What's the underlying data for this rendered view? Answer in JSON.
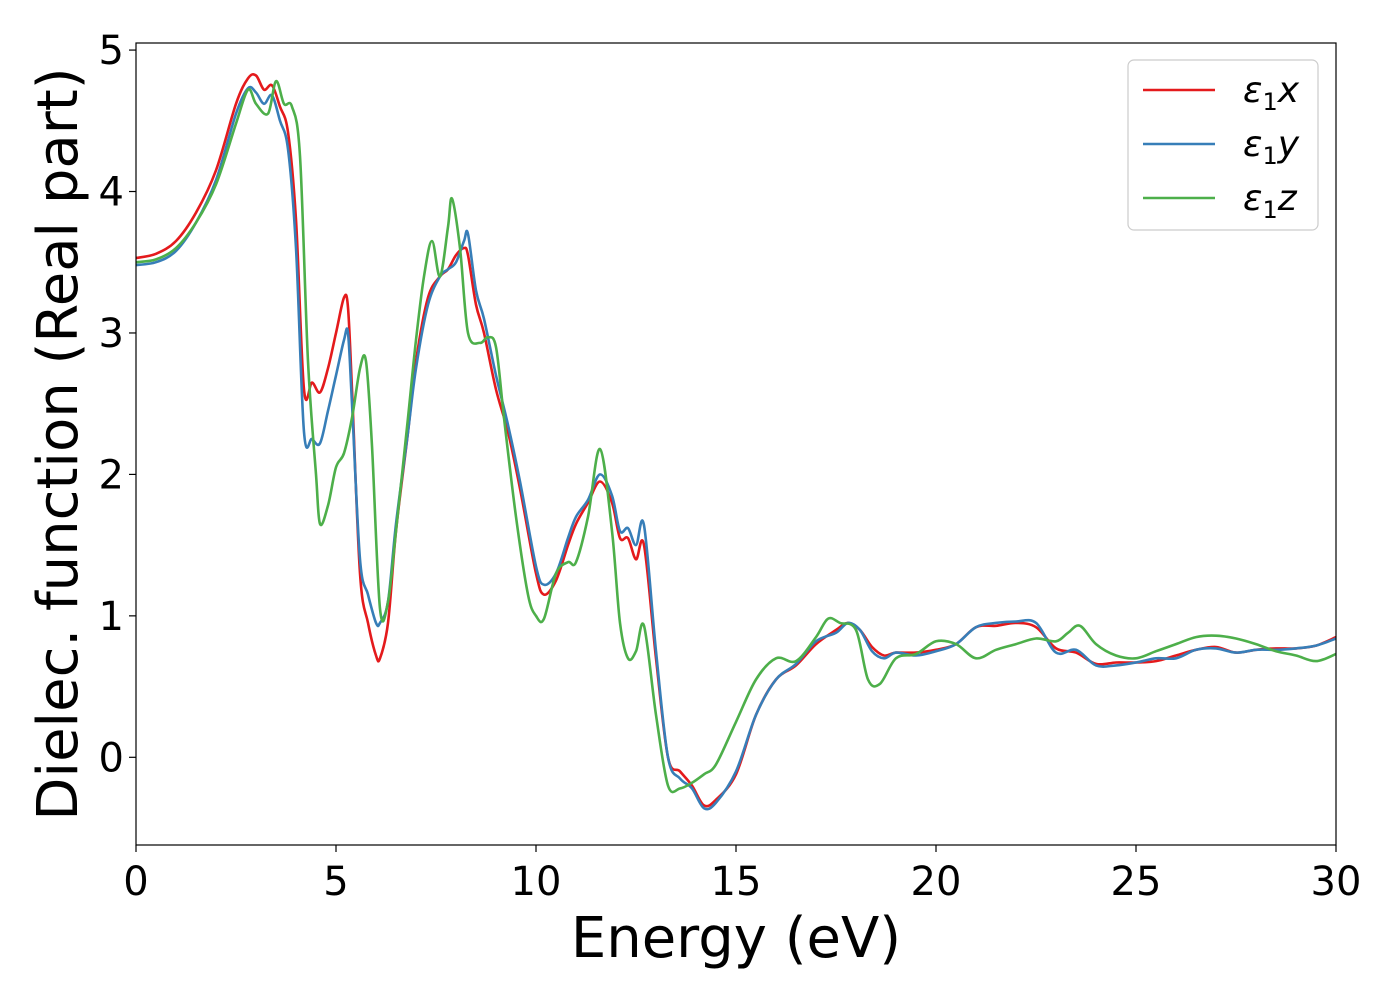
{
  "chart_data": {
    "type": "line",
    "xlabel": "Energy (eV)",
    "ylabel": "Dielec. function (Real part)",
    "xlim": [
      0,
      30
    ],
    "ylim": [
      -0.62,
      5.05
    ],
    "xticks": [
      0,
      5,
      10,
      15,
      20,
      25,
      30
    ],
    "yticks": [
      0,
      1,
      2,
      3,
      4,
      5
    ],
    "grid": false,
    "legend_position": "top-right",
    "series": [
      {
        "name": "ε1x",
        "legend": {
          "base": "ε",
          "sub": "1",
          "var": "x"
        },
        "color": "#e41a1c",
        "x": [
          0,
          0.5,
          1,
          1.5,
          2,
          2.5,
          2.8,
          3.0,
          3.2,
          3.4,
          3.6,
          3.8,
          4.0,
          4.2,
          4.4,
          4.6,
          4.8,
          5.0,
          5.2,
          5.3,
          5.4,
          5.6,
          5.8,
          6.0,
          6.1,
          6.3,
          6.5,
          6.8,
          7.0,
          7.3,
          7.6,
          7.8,
          8.0,
          8.2,
          8.3,
          8.5,
          8.7,
          9.0,
          9.3,
          9.6,
          10.0,
          10.2,
          10.5,
          10.8,
          11.0,
          11.3,
          11.6,
          11.9,
          12.1,
          12.3,
          12.5,
          12.7,
          13.0,
          13.3,
          13.6,
          13.9,
          14.2,
          14.5,
          15.0,
          15.5,
          16.0,
          16.5,
          17.0,
          17.5,
          17.8,
          18.1,
          18.4,
          18.7,
          19.0,
          19.5,
          20.0,
          20.5,
          21.0,
          21.5,
          22.0,
          22.5,
          23.0,
          23.5,
          24.0,
          24.5,
          25.0,
          25.5,
          26.0,
          26.5,
          27.0,
          27.5,
          28.0,
          28.5,
          29.0,
          29.5,
          30.0
        ],
        "y": [
          3.53,
          3.56,
          3.65,
          3.85,
          4.15,
          4.62,
          4.8,
          4.82,
          4.72,
          4.75,
          4.6,
          4.42,
          3.8,
          2.6,
          2.65,
          2.58,
          2.75,
          3.0,
          3.25,
          3.18,
          2.6,
          1.3,
          0.95,
          0.72,
          0.7,
          0.95,
          1.6,
          2.3,
          2.8,
          3.25,
          3.4,
          3.45,
          3.55,
          3.6,
          3.55,
          3.2,
          3.0,
          2.6,
          2.3,
          1.9,
          1.3,
          1.15,
          1.25,
          1.5,
          1.65,
          1.8,
          1.95,
          1.8,
          1.55,
          1.55,
          1.4,
          1.5,
          0.7,
          0.0,
          -0.1,
          -0.2,
          -0.34,
          -0.3,
          -0.12,
          0.3,
          0.55,
          0.65,
          0.8,
          0.9,
          0.95,
          0.9,
          0.78,
          0.72,
          0.74,
          0.74,
          0.76,
          0.8,
          0.92,
          0.93,
          0.95,
          0.92,
          0.77,
          0.74,
          0.66,
          0.67,
          0.67,
          0.68,
          0.72,
          0.76,
          0.78,
          0.74,
          0.76,
          0.77,
          0.77,
          0.79,
          0.85
        ]
      },
      {
        "name": "ε1y",
        "legend": {
          "base": "ε",
          "sub": "1",
          "var": "y"
        },
        "color": "#377eb8",
        "x": [
          0,
          0.5,
          1,
          1.5,
          2,
          2.5,
          2.8,
          3.0,
          3.2,
          3.4,
          3.6,
          3.8,
          4.0,
          4.2,
          4.4,
          4.6,
          4.8,
          5.0,
          5.2,
          5.3,
          5.4,
          5.6,
          5.8,
          6.0,
          6.1,
          6.3,
          6.5,
          6.8,
          7.0,
          7.3,
          7.6,
          7.8,
          8.0,
          8.2,
          8.3,
          8.5,
          8.7,
          9.0,
          9.3,
          9.6,
          10.0,
          10.2,
          10.5,
          10.8,
          11.0,
          11.3,
          11.6,
          11.9,
          12.1,
          12.3,
          12.5,
          12.7,
          13.0,
          13.3,
          13.6,
          13.9,
          14.2,
          14.5,
          15.0,
          15.5,
          16.0,
          16.5,
          17.0,
          17.5,
          17.8,
          18.1,
          18.4,
          18.7,
          19.0,
          19.5,
          20.0,
          20.5,
          21.0,
          21.5,
          22.0,
          22.5,
          23.0,
          23.5,
          24.0,
          24.5,
          25.0,
          25.5,
          26.0,
          26.5,
          27.0,
          27.5,
          28.0,
          28.5,
          29.0,
          29.5,
          30.0
        ],
        "y": [
          3.48,
          3.5,
          3.58,
          3.78,
          4.08,
          4.55,
          4.73,
          4.7,
          4.62,
          4.68,
          4.5,
          4.3,
          3.6,
          2.3,
          2.25,
          2.22,
          2.45,
          2.7,
          2.95,
          3.0,
          2.5,
          1.4,
          1.15,
          0.95,
          0.95,
          1.1,
          1.65,
          2.3,
          2.75,
          3.2,
          3.4,
          3.45,
          3.5,
          3.65,
          3.7,
          3.3,
          3.1,
          2.7,
          2.35,
          1.95,
          1.35,
          1.22,
          1.3,
          1.55,
          1.7,
          1.82,
          2.0,
          1.85,
          1.6,
          1.62,
          1.5,
          1.64,
          0.75,
          0.0,
          -0.15,
          -0.22,
          -0.36,
          -0.32,
          -0.1,
          0.3,
          0.55,
          0.66,
          0.82,
          0.88,
          0.95,
          0.9,
          0.75,
          0.7,
          0.74,
          0.72,
          0.75,
          0.8,
          0.92,
          0.95,
          0.96,
          0.95,
          0.74,
          0.76,
          0.65,
          0.65,
          0.67,
          0.7,
          0.7,
          0.76,
          0.77,
          0.74,
          0.76,
          0.76,
          0.77,
          0.79,
          0.84
        ]
      },
      {
        "name": "ε1z",
        "legend": {
          "base": "ε",
          "sub": "1",
          "var": "z"
        },
        "color": "#4daf4a",
        "x": [
          0,
          0.5,
          1,
          1.5,
          2,
          2.5,
          2.8,
          3.0,
          3.3,
          3.5,
          3.7,
          3.9,
          4.1,
          4.3,
          4.5,
          4.6,
          4.8,
          5.0,
          5.2,
          5.4,
          5.6,
          5.75,
          5.9,
          6.1,
          6.3,
          6.5,
          6.8,
          7.0,
          7.2,
          7.4,
          7.6,
          7.8,
          7.9,
          8.1,
          8.3,
          8.6,
          8.8,
          9.0,
          9.2,
          9.5,
          9.8,
          10.0,
          10.2,
          10.5,
          10.8,
          11.0,
          11.3,
          11.6,
          11.9,
          12.1,
          12.3,
          12.5,
          12.7,
          13.0,
          13.3,
          13.6,
          13.9,
          14.2,
          14.5,
          15.0,
          15.5,
          16.0,
          16.5,
          17.0,
          17.3,
          17.6,
          18.0,
          18.3,
          18.6,
          19.0,
          19.5,
          20.0,
          20.5,
          21.0,
          21.5,
          22.0,
          22.5,
          23.0,
          23.3,
          23.6,
          24.0,
          24.5,
          25.0,
          25.5,
          26.0,
          26.5,
          27.0,
          27.5,
          28.0,
          28.5,
          29.0,
          29.5,
          30.0
        ],
        "y": [
          3.5,
          3.52,
          3.6,
          3.78,
          4.05,
          4.48,
          4.72,
          4.62,
          4.55,
          4.78,
          4.62,
          4.6,
          4.25,
          2.8,
          2.0,
          1.65,
          1.78,
          2.05,
          2.15,
          2.4,
          2.75,
          2.8,
          2.2,
          1.05,
          1.1,
          1.6,
          2.4,
          2.95,
          3.4,
          3.65,
          3.4,
          3.75,
          3.95,
          3.6,
          3.0,
          2.93,
          2.97,
          2.9,
          2.4,
          1.7,
          1.15,
          1.0,
          0.98,
          1.3,
          1.38,
          1.38,
          1.7,
          2.18,
          1.6,
          0.95,
          0.7,
          0.75,
          0.93,
          0.3,
          -0.2,
          -0.22,
          -0.18,
          -0.12,
          -0.05,
          0.25,
          0.55,
          0.7,
          0.68,
          0.85,
          0.98,
          0.95,
          0.9,
          0.55,
          0.52,
          0.7,
          0.73,
          0.82,
          0.8,
          0.7,
          0.76,
          0.8,
          0.84,
          0.82,
          0.88,
          0.93,
          0.8,
          0.72,
          0.7,
          0.75,
          0.8,
          0.85,
          0.86,
          0.84,
          0.8,
          0.75,
          0.72,
          0.68,
          0.73
        ]
      }
    ]
  }
}
